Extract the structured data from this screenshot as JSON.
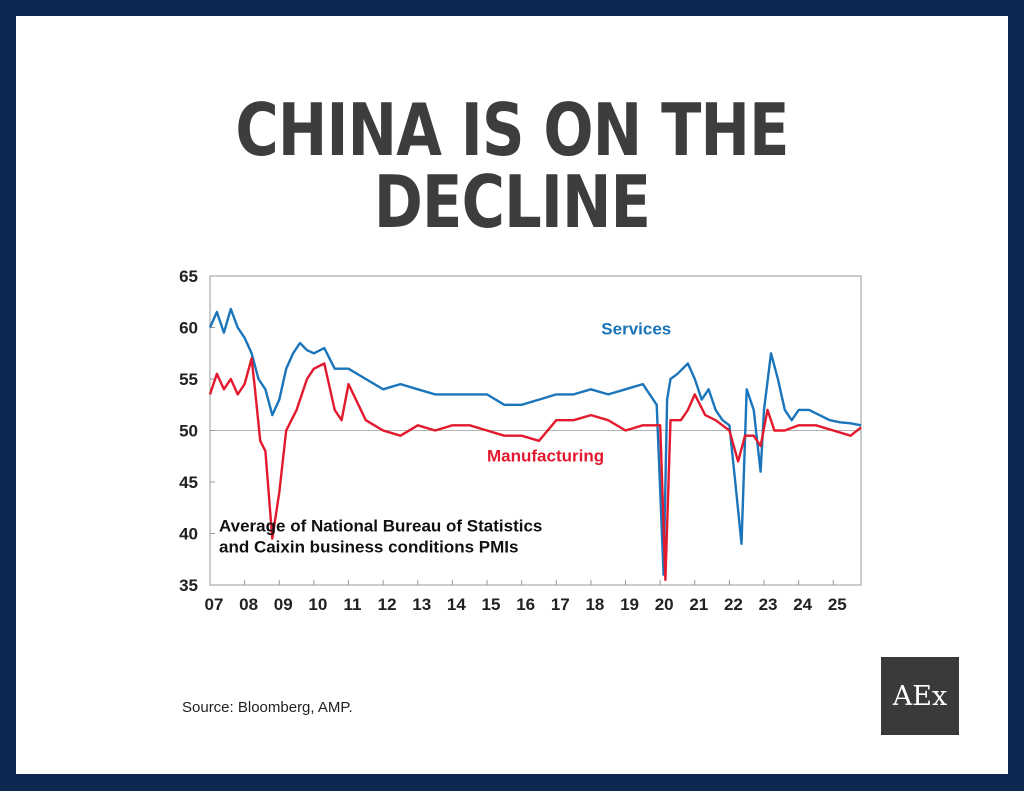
{
  "slide": {
    "title": "CHINA IS ON THE DECLINE",
    "source": "Source: Bloomberg, AMP.",
    "logo_text": "AEx"
  },
  "colors": {
    "frame": "#0d2750",
    "services": "#1a75bb",
    "manufacturing": "#e3192d"
  },
  "chart_data": {
    "type": "line",
    "annotation": [
      "Average of National Bureau of Statistics",
      "and Caixin business conditions PMIs"
    ],
    "xlim": [
      2007.0,
      2025.8
    ],
    "ylim": [
      35,
      65
    ],
    "yticks": [
      35,
      40,
      45,
      50,
      55,
      60,
      65
    ],
    "xtick_labels": [
      "07",
      "08",
      "09",
      "10",
      "11",
      "12",
      "13",
      "14",
      "15",
      "16",
      "17",
      "18",
      "19",
      "20",
      "21",
      "22",
      "23",
      "24",
      "25"
    ],
    "grid": false,
    "reference_line": 50,
    "series": [
      {
        "name": "Services",
        "color": "#1a75bb",
        "x": [
          2007.0,
          2007.2,
          2007.4,
          2007.6,
          2007.8,
          2008.0,
          2008.2,
          2008.4,
          2008.6,
          2008.8,
          2009.0,
          2009.2,
          2009.4,
          2009.6,
          2009.8,
          2010.0,
          2010.3,
          2010.6,
          2011.0,
          2011.5,
          2012.0,
          2012.5,
          2013.0,
          2013.5,
          2014.0,
          2014.5,
          2015.0,
          2015.5,
          2016.0,
          2016.5,
          2017.0,
          2017.5,
          2018.0,
          2018.5,
          2019.0,
          2019.5,
          2019.9,
          2020.1,
          2020.2,
          2020.3,
          2020.5,
          2020.8,
          2021.0,
          2021.2,
          2021.4,
          2021.6,
          2021.8,
          2022.0,
          2022.2,
          2022.35,
          2022.5,
          2022.7,
          2022.9,
          2023.0,
          2023.2,
          2023.4,
          2023.6,
          2023.8,
          2024.0,
          2024.3,
          2024.6,
          2024.9,
          2025.2,
          2025.5,
          2025.8
        ],
        "values": [
          60,
          61.5,
          59.5,
          61.8,
          60,
          59,
          57.5,
          55,
          54,
          51.5,
          53,
          56,
          57.5,
          58.5,
          57.8,
          57.5,
          58,
          56,
          56,
          55,
          54,
          54.5,
          54,
          53.5,
          53.5,
          53.5,
          53.5,
          52.5,
          52.5,
          53,
          53.5,
          53.5,
          54,
          53.5,
          54,
          54.5,
          52.5,
          36,
          53,
          55,
          55.5,
          56.5,
          55,
          53,
          54,
          52,
          51,
          50.5,
          44,
          39,
          54,
          52,
          46,
          52,
          57.5,
          55,
          52,
          51,
          52,
          52,
          51.5,
          51,
          50.8,
          50.7,
          50.5
        ]
      },
      {
        "name": "Manufacturing",
        "color": "#e3192d",
        "x": [
          2007.0,
          2007.2,
          2007.4,
          2007.6,
          2007.8,
          2008.0,
          2008.2,
          2008.3,
          2008.45,
          2008.6,
          2008.8,
          2009.0,
          2009.2,
          2009.5,
          2009.8,
          2010.0,
          2010.3,
          2010.6,
          2010.8,
          2011.0,
          2011.5,
          2012.0,
          2012.5,
          2013.0,
          2013.5,
          2014.0,
          2014.5,
          2015.0,
          2015.5,
          2016.0,
          2016.5,
          2017.0,
          2017.5,
          2018.0,
          2018.5,
          2019.0,
          2019.5,
          2020.0,
          2020.15,
          2020.3,
          2020.6,
          2020.8,
          2021.0,
          2021.3,
          2021.6,
          2022.0,
          2022.25,
          2022.45,
          2022.7,
          2022.9,
          2023.1,
          2023.3,
          2023.6,
          2024.0,
          2024.5,
          2025.0,
          2025.5,
          2025.8
        ],
        "values": [
          53.5,
          55.5,
          54,
          55,
          53.5,
          54.5,
          57,
          54,
          49,
          48,
          39.5,
          44,
          50,
          52,
          55,
          56,
          56.5,
          52,
          51,
          54.5,
          51,
          50,
          49.5,
          50.5,
          50,
          50.5,
          50.5,
          50,
          49.5,
          49.5,
          49,
          51,
          51,
          51.5,
          51,
          50,
          50.5,
          50.5,
          35.5,
          51,
          51,
          52,
          53.5,
          51.5,
          51,
          50,
          47,
          49.5,
          49.5,
          48.5,
          52,
          50,
          50,
          50.5,
          50.5,
          50,
          49.5,
          50.3
        ]
      }
    ]
  }
}
